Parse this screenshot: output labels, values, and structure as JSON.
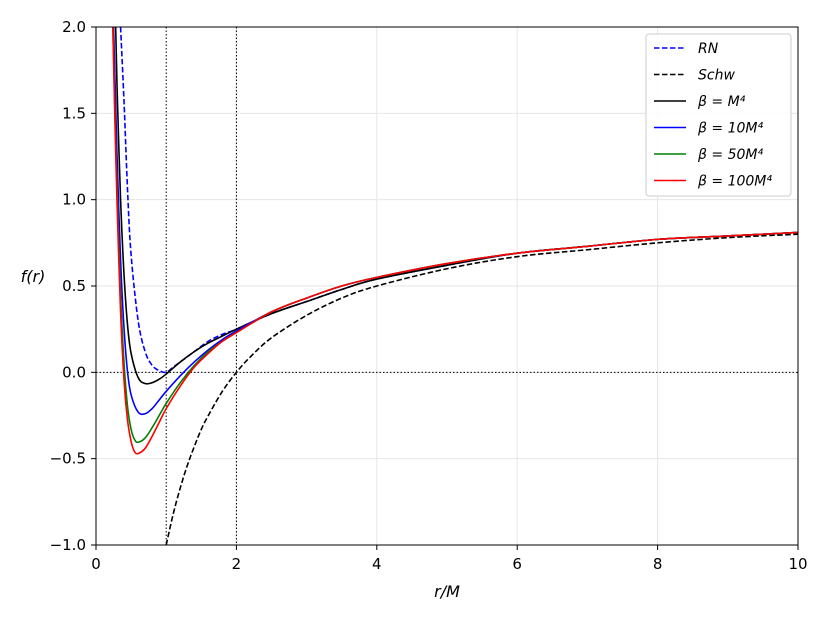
{
  "chart_data": {
    "type": "line",
    "xlabel": "r/M",
    "ylabel": "f(r)",
    "xlim": [
      0,
      10
    ],
    "ylim": [
      -1.0,
      2.0
    ],
    "xticks": [
      "0",
      "2",
      "4",
      "6",
      "8",
      "10"
    ],
    "yticks": [
      "−1.0",
      "−0.5",
      "0.0",
      "0.5",
      "1.0",
      "1.5",
      "2.0"
    ],
    "grid": true,
    "legend_position": "top-right",
    "series": [
      {
        "name": "RN",
        "color": "#0000ff",
        "style": "dashed",
        "x": [
          0.35,
          0.4,
          0.45,
          0.5,
          0.6,
          0.7,
          0.8,
          0.9,
          1.0,
          1.1,
          1.2,
          1.4,
          1.6,
          1.8,
          2.0,
          2.5,
          3.0,
          3.5,
          4.0,
          5.0,
          6.0,
          7.0,
          8.0,
          9.0,
          10.0
        ],
        "y": [
          2.0,
          1.56,
          1.05,
          0.68,
          0.3,
          0.12,
          0.04,
          0.01,
          0.0,
          0.03,
          0.06,
          0.12,
          0.18,
          0.22,
          0.25,
          0.34,
          0.41,
          0.48,
          0.54,
          0.62,
          0.69,
          0.73,
          0.77,
          0.79,
          0.81
        ]
      },
      {
        "name": "Schw",
        "color": "#000000",
        "style": "dashed",
        "x": [
          1.0,
          1.1,
          1.2,
          1.3,
          1.4,
          1.5,
          1.6,
          1.8,
          2.0,
          2.2,
          2.5,
          3.0,
          3.5,
          4.0,
          5.0,
          6.0,
          7.0,
          8.0,
          9.0,
          10.0
        ],
        "y": [
          -1.0,
          -0.82,
          -0.67,
          -0.54,
          -0.43,
          -0.33,
          -0.25,
          -0.11,
          0.0,
          0.09,
          0.2,
          0.33,
          0.43,
          0.5,
          0.6,
          0.67,
          0.71,
          0.75,
          0.78,
          0.8
        ]
      },
      {
        "name": "β = M⁴",
        "color": "#000000",
        "style": "solid",
        "x": [
          0.28,
          0.3,
          0.35,
          0.4,
          0.45,
          0.5,
          0.6,
          0.7,
          0.8,
          0.9,
          1.0,
          1.2,
          1.4,
          1.6,
          1.8,
          2.0,
          2.5,
          3.0,
          3.5,
          4.0,
          5.0,
          6.0,
          7.0,
          8.0,
          9.0,
          10.0
        ],
        "y": [
          2.0,
          1.65,
          1.0,
          0.56,
          0.27,
          0.11,
          -0.03,
          -0.065,
          -0.06,
          -0.04,
          -0.01,
          0.06,
          0.12,
          0.17,
          0.21,
          0.25,
          0.34,
          0.41,
          0.48,
          0.54,
          0.62,
          0.69,
          0.73,
          0.77,
          0.79,
          0.81
        ]
      },
      {
        "name": "β = 10M⁴",
        "color": "#0000ff",
        "style": "solid",
        "x": [
          0.25,
          0.28,
          0.3,
          0.35,
          0.4,
          0.45,
          0.5,
          0.6,
          0.7,
          0.8,
          0.9,
          1.0,
          1.2,
          1.4,
          1.6,
          1.8,
          2.0,
          2.5,
          3.0,
          3.5,
          4.0,
          5.0,
          6.0,
          7.0,
          8.0,
          9.0,
          10.0
        ],
        "y": [
          2.0,
          1.55,
          1.25,
          0.65,
          0.25,
          0.0,
          -0.13,
          -0.23,
          -0.24,
          -0.21,
          -0.16,
          -0.11,
          -0.02,
          0.06,
          0.13,
          0.19,
          0.24,
          0.35,
          0.43,
          0.5,
          0.55,
          0.63,
          0.69,
          0.73,
          0.77,
          0.79,
          0.81
        ]
      },
      {
        "name": "β = 50M⁴",
        "color": "#008000",
        "style": "solid",
        "x": [
          0.24,
          0.27,
          0.3,
          0.35,
          0.4,
          0.45,
          0.5,
          0.55,
          0.6,
          0.7,
          0.8,
          0.9,
          1.0,
          1.2,
          1.4,
          1.6,
          1.8,
          2.0,
          2.5,
          3.0,
          3.5,
          4.0,
          5.0,
          6.0,
          7.0,
          8.0,
          9.0,
          10.0
        ],
        "y": [
          2.0,
          1.5,
          1.05,
          0.45,
          0.05,
          -0.2,
          -0.33,
          -0.39,
          -0.405,
          -0.38,
          -0.32,
          -0.25,
          -0.18,
          -0.06,
          0.04,
          0.12,
          0.18,
          0.23,
          0.35,
          0.43,
          0.5,
          0.55,
          0.63,
          0.69,
          0.73,
          0.77,
          0.79,
          0.81
        ]
      },
      {
        "name": "β = 100M⁴",
        "color": "#ff0000",
        "style": "solid",
        "x": [
          0.24,
          0.27,
          0.3,
          0.35,
          0.4,
          0.45,
          0.5,
          0.55,
          0.6,
          0.7,
          0.8,
          0.9,
          1.0,
          1.2,
          1.4,
          1.6,
          1.8,
          2.0,
          2.5,
          3.0,
          3.5,
          4.0,
          5.0,
          6.0,
          7.0,
          8.0,
          9.0,
          10.0
        ],
        "y": [
          2.0,
          1.45,
          0.98,
          0.35,
          -0.05,
          -0.28,
          -0.4,
          -0.46,
          -0.47,
          -0.44,
          -0.37,
          -0.29,
          -0.21,
          -0.08,
          0.03,
          0.11,
          0.18,
          0.23,
          0.35,
          0.43,
          0.5,
          0.55,
          0.63,
          0.69,
          0.73,
          0.77,
          0.79,
          0.81
        ]
      }
    ],
    "reference_lines": {
      "vertical_x": [
        1,
        2
      ],
      "horizontal_y": [
        0
      ]
    }
  }
}
